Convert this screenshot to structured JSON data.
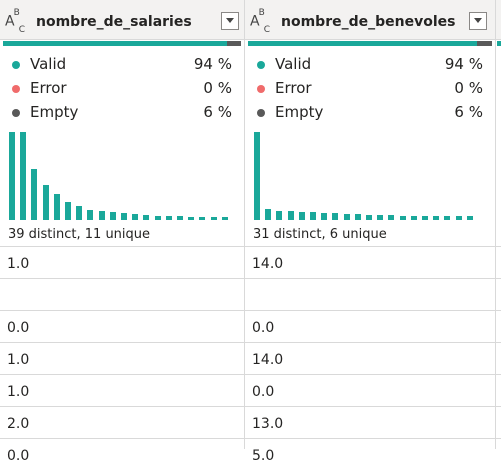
{
  "columns": [
    {
      "type_icon": "text-type-icon",
      "title": "nombre_de_salaries",
      "quality": {
        "valid": 94,
        "error": 0,
        "empty": 6
      },
      "stats": [
        {
          "label": "Valid",
          "pct": "94 %",
          "color": "#1aa89a"
        },
        {
          "label": "Error",
          "pct": "0 %",
          "color": "#f06b6b"
        },
        {
          "label": "Empty",
          "pct": "6 %",
          "color": "#595959"
        }
      ],
      "histogram": [
        100,
        100,
        58,
        40,
        30,
        20,
        16,
        11,
        10,
        9,
        8,
        7,
        6,
        5,
        4,
        4,
        3,
        3,
        3,
        3
      ],
      "distinct_text": "39 distinct, 11 unique",
      "rows": [
        "1.0",
        "",
        "0.0",
        "1.0",
        "1.0",
        "2.0",
        "0.0"
      ]
    },
    {
      "type_icon": "text-type-icon",
      "title": "nombre_de_benevoles",
      "quality": {
        "valid": 94,
        "error": 0,
        "empty": 6
      },
      "stats": [
        {
          "label": "Valid",
          "pct": "94 %",
          "color": "#1aa89a"
        },
        {
          "label": "Error",
          "pct": "0 %",
          "color": "#f06b6b"
        },
        {
          "label": "Empty",
          "pct": "6 %",
          "color": "#595959"
        }
      ],
      "histogram": [
        100,
        12,
        10,
        10,
        9,
        9,
        8,
        8,
        7,
        7,
        6,
        6,
        6,
        5,
        5,
        5,
        4,
        4,
        4,
        4
      ],
      "distinct_text": "31 distinct, 6 unique",
      "rows": [
        "14.0",
        "",
        "0.0",
        "14.0",
        "0.0",
        "13.0",
        "5.0"
      ]
    }
  ]
}
